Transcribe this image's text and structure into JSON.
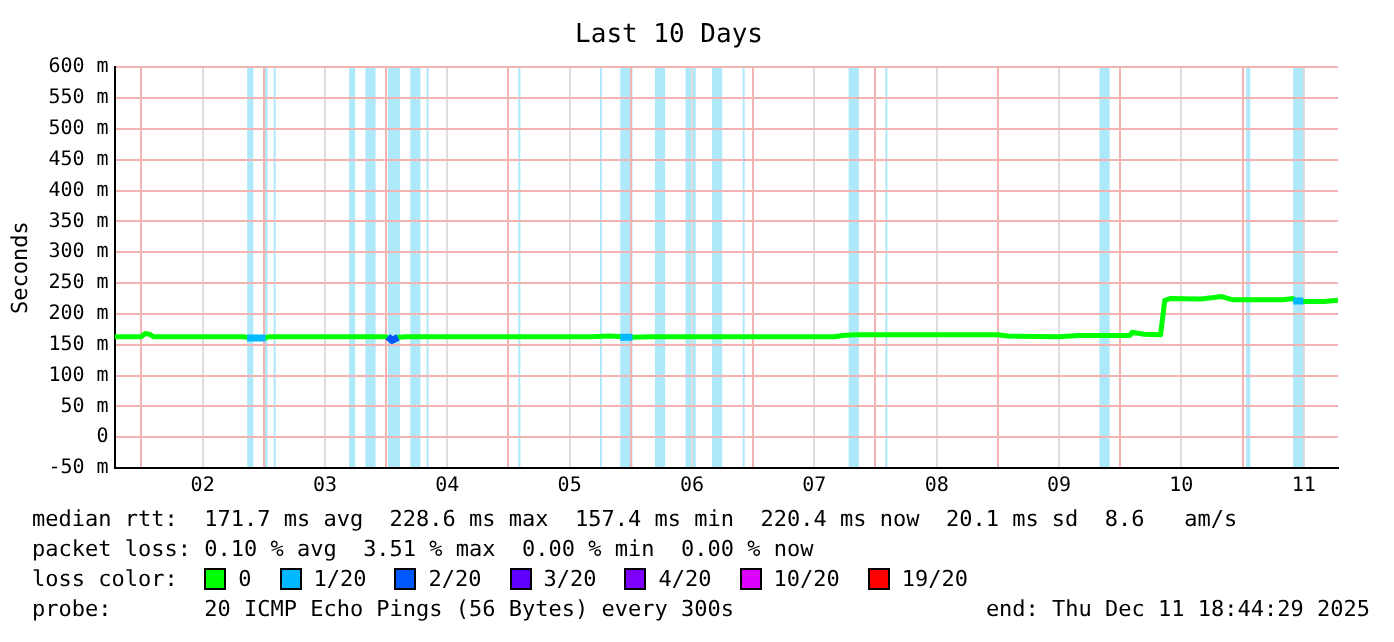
{
  "chart_data": {
    "type": "line",
    "title": "Last 10 Days",
    "ylabel": "Seconds",
    "legend_title": "loss color:",
    "legend": "bottom",
    "grid": true,
    "marker": "none",
    "line_style": "solid",
    "xlim": [
      "2025-12-01T18:44",
      "2025-12-11T18:44"
    ],
    "xticks": [
      {
        "value": "2025-12-02",
        "label": null
      },
      {
        "value": "2025-12-02T12:00",
        "label": "02"
      },
      {
        "value": "2025-12-03",
        "label": null
      },
      {
        "value": "2025-12-03T12:00",
        "label": "03"
      },
      {
        "value": "2025-12-04",
        "label": null
      },
      {
        "value": "2025-12-04T12:00",
        "label": "04"
      },
      {
        "value": "2025-12-05",
        "label": null
      },
      {
        "value": "2025-12-05T12:00",
        "label": "05"
      },
      {
        "value": "2025-12-06",
        "label": null
      },
      {
        "value": "2025-12-06T12:00",
        "label": "06"
      },
      {
        "value": "2025-12-07",
        "label": null
      },
      {
        "value": "2025-12-07T12:00",
        "label": "07"
      },
      {
        "value": "2025-12-08",
        "label": null
      },
      {
        "value": "2025-12-08T12:00",
        "label": "08"
      },
      {
        "value": "2025-12-09",
        "label": null
      },
      {
        "value": "2025-12-09T12:00",
        "label": "09"
      },
      {
        "value": "2025-12-10",
        "label": null
      },
      {
        "value": "2025-12-10T12:00",
        "label": "10"
      },
      {
        "value": "2025-12-11",
        "label": null
      },
      {
        "value": "2025-12-11T12:00",
        "label": "11"
      }
    ],
    "ylim": [
      -50,
      600
    ],
    "yticks": [
      {
        "value": -50,
        "label": "-50 m"
      },
      0,
      {
        "value": 50,
        "label": "50 m"
      },
      {
        "value": 100,
        "label": "100 m"
      },
      {
        "value": 150,
        "label": "150 m"
      },
      {
        "value": 200,
        "label": "200 m"
      },
      {
        "value": 250,
        "label": "250 m"
      },
      {
        "value": 300,
        "label": "300 m"
      },
      {
        "value": 350,
        "label": "350 m"
      },
      {
        "value": 400,
        "label": "400 m"
      },
      {
        "value": 450,
        "label": "450 m"
      },
      {
        "value": 500,
        "label": "500 m"
      },
      {
        "value": 550,
        "label": "550 m"
      },
      {
        "value": 600,
        "label": "600 m"
      }
    ],
    "series": [
      {
        "name": "0",
        "color": "#00ff00",
        "x": [
          "2025-12-01T18:44",
          "2025-12-01T23:56",
          "2025-12-02T00:44",
          "2025-12-02T01:32",
          "2025-12-02T02:20",
          "2025-12-02T19:56",
          "2025-12-02T21:32",
          "2025-12-03T00:20",
          "2025-12-03T01:08",
          "2025-12-03T23:56",
          "2025-12-04T01:08",
          "2025-12-04T02:20",
          "2025-12-04T03:56",
          "2025-12-05T15:56",
          "2025-12-05T19:56",
          "2025-12-05T23:56",
          "2025-12-06T03:56",
          "2025-12-07T15:56",
          "2025-12-07T17:32",
          "2025-12-07T19:56",
          "2025-12-08T23:56",
          "2025-12-09T01:56",
          "2025-12-09T11:56",
          "2025-12-09T15:56",
          "2025-12-10T01:56",
          "2025-12-10T02:20",
          "2025-12-10T04:44",
          "2025-12-10T07:56",
          "2025-12-10T08:44",
          "2025-12-10T09:56",
          "2025-12-10T15:56",
          "2025-12-10T19:56",
          "2025-12-10T21:56",
          "2025-12-11T07:56",
          "2025-12-11T09:56",
          "2025-12-11T10:44",
          "2025-12-11T15:56",
          "2025-12-11T18:44"
        ],
        "values": [
          163,
          163,
          168,
          167,
          163,
          163,
          161,
          161,
          163,
          163,
          157,
          162,
          163,
          163,
          164,
          162,
          163,
          163,
          165,
          166,
          166,
          164,
          163,
          165,
          165,
          170,
          167,
          166,
          222,
          225,
          224,
          228,
          223,
          223,
          225,
          220,
          220,
          222
        ]
      },
      {
        "name": "1/20",
        "color": "#00b8ff",
        "x": [
          "2025-12-02T20:44",
          "2025-12-03T00:20",
          "2025-12-03T00:44",
          "2025-12-05T21:56",
          "2025-12-06T00:20",
          "2025-12-06T00:44",
          "2025-12-11T09:56",
          "2025-12-11T11:56"
        ],
        "values": [
          161,
          161,
          null,
          162,
          162,
          null,
          221,
          221
        ]
      },
      {
        "name": "2/20",
        "color": "#0059ff",
        "x": [
          "2025-12-04T00:20",
          "2025-12-04T01:08",
          "2025-12-04T02:20"
        ],
        "values": [
          163,
          157,
          162
        ]
      },
      {
        "name": "3/20",
        "color": "#5e00ff"
      },
      {
        "name": "4/20",
        "color": "#7e00ff"
      },
      {
        "name": "10/20",
        "color": "#dd00ff"
      },
      {
        "name": "19/20",
        "color": "#ff0000"
      }
    ],
    "bands": [
      {
        "axis": "x",
        "from": "2025-12-02T20:44",
        "to": "2025-12-02T21:56",
        "color": "#aee8fb"
      },
      {
        "axis": "x",
        "from": "2025-12-02T23:56",
        "to": "2025-12-03T00:44",
        "color": "#aee8fb"
      },
      {
        "axis": "x",
        "from": "2025-12-03T01:56",
        "to": "2025-12-03T02:20",
        "color": "#aee8fb"
      },
      {
        "axis": "x",
        "from": "2025-12-03T16:44",
        "to": "2025-12-03T17:56",
        "color": "#aee8fb"
      },
      {
        "axis": "x",
        "from": "2025-12-03T19:56",
        "to": "2025-12-03T21:56",
        "color": "#aee8fb"
      },
      {
        "axis": "x",
        "from": "2025-12-04T00:20",
        "to": "2025-12-04T02:44",
        "color": "#aee8fb"
      },
      {
        "axis": "x",
        "from": "2025-12-04T04:44",
        "to": "2025-12-04T06:44",
        "color": "#aee8fb"
      },
      {
        "axis": "x",
        "from": "2025-12-04T07:56",
        "to": "2025-12-04T08:20",
        "color": "#aee8fb"
      },
      {
        "axis": "x",
        "from": "2025-12-05T01:56",
        "to": "2025-12-05T02:20",
        "color": "#aee8fb"
      },
      {
        "axis": "x",
        "from": "2025-12-05T17:56",
        "to": "2025-12-05T18:20",
        "color": "#aee8fb"
      },
      {
        "axis": "x",
        "from": "2025-12-05T21:56",
        "to": "2025-12-06T00:20",
        "color": "#aee8fb"
      },
      {
        "axis": "x",
        "from": "2025-12-06T04:44",
        "to": "2025-12-06T06:44",
        "color": "#aee8fb"
      },
      {
        "axis": "x",
        "from": "2025-12-06T10:44",
        "to": "2025-12-06T12:44",
        "color": "#aee8fb"
      },
      {
        "axis": "x",
        "from": "2025-12-06T15:56",
        "to": "2025-12-06T17:56",
        "color": "#aee8fb"
      },
      {
        "axis": "x",
        "from": "2025-12-06T21:56",
        "to": "2025-12-06T22:20",
        "color": "#aee8fb"
      },
      {
        "axis": "x",
        "from": "2025-12-07T18:44",
        "to": "2025-12-07T20:44",
        "color": "#aee8fb"
      },
      {
        "axis": "x",
        "from": "2025-12-08T01:56",
        "to": "2025-12-08T02:20",
        "color": "#aee8fb"
      },
      {
        "axis": "x",
        "from": "2025-12-09T19:56",
        "to": "2025-12-09T21:56",
        "color": "#aee8fb"
      },
      {
        "axis": "x",
        "from": "2025-12-11T00:44",
        "to": "2025-12-11T01:32",
        "color": "#aee8fb"
      },
      {
        "axis": "x",
        "from": "2025-12-11T09:56",
        "to": "2025-12-11T11:56",
        "color": "#aee8fb"
      }
    ],
    "annotations": [
      "median rtt:  171.7 ms avg  228.6 ms max  157.4 ms min  220.4 ms now  20.1 ms sd  8.6   am/s",
      "packet loss: 0.10 % avg  3.51 % max  0.00 % min  0.00 % now",
      "probe:       20 ICMP Echo Pings (56 Bytes) every 300s",
      "end: Thu Dec 11 18:44:29 2025"
    ]
  }
}
